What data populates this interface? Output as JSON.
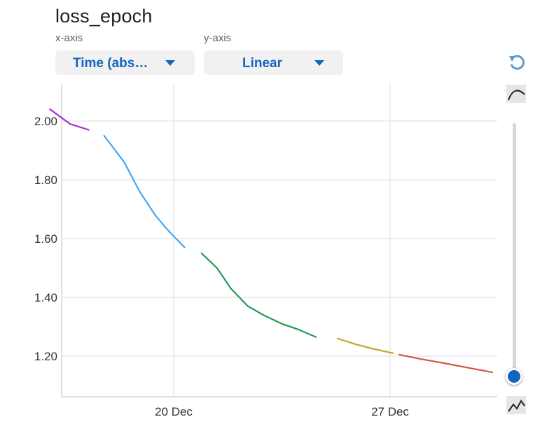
{
  "header": {
    "title": "loss_epoch",
    "xaxis_label": "x-axis",
    "yaxis_label": "y-axis",
    "xaxis_value": "Time (abs…",
    "yaxis_value": "Linear"
  },
  "icons": {
    "reset": "reset-zoom-icon",
    "smooth_curve": "smoothing-curve-icon",
    "raw_line": "raw-line-icon"
  },
  "colors": {
    "accent": "#1565c0",
    "grid": "#dddddd",
    "slider_knob": "#1565c0"
  },
  "smoothing_slider": {
    "value": 0.0
  },
  "chart_data": {
    "type": "line",
    "title": "loss_epoch",
    "xlabel": "",
    "ylabel": "",
    "x_ticks": [
      "20 Dec",
      "27 Dec"
    ],
    "y_ticks": [
      "1.20",
      "1.40",
      "1.60",
      "1.80",
      "2.00"
    ],
    "ylim": [
      1.07,
      2.13
    ],
    "xlim_days": [
      "2021-12-15T16:00",
      "2021-12-29T12:00"
    ],
    "series": [
      {
        "color": "#aa33cc",
        "points": [
          [
            16.0,
            2.04
          ],
          [
            16.65,
            1.99
          ],
          [
            17.25,
            1.97
          ]
        ]
      },
      {
        "color": "#42a5f5",
        "points": [
          [
            17.75,
            1.95
          ],
          [
            18.4,
            1.86
          ],
          [
            18.9,
            1.76
          ],
          [
            19.4,
            1.68
          ],
          [
            19.8,
            1.63
          ],
          [
            20.35,
            1.57
          ]
        ]
      },
      {
        "color": "#229955",
        "points": [
          [
            20.9,
            1.55
          ],
          [
            21.4,
            1.5
          ],
          [
            21.85,
            1.43
          ],
          [
            22.4,
            1.37
          ],
          [
            22.9,
            1.34
          ],
          [
            23.5,
            1.31
          ],
          [
            24.05,
            1.29
          ],
          [
            24.6,
            1.265
          ]
        ]
      },
      {
        "color": "#c8a62a",
        "points": [
          [
            25.3,
            1.26
          ],
          [
            25.9,
            1.24
          ],
          [
            26.45,
            1.225
          ],
          [
            27.1,
            1.21
          ]
        ]
      },
      {
        "color": "#d0583f",
        "points": [
          [
            27.3,
            1.205
          ],
          [
            28.0,
            1.19
          ],
          [
            28.8,
            1.175
          ],
          [
            29.55,
            1.16
          ],
          [
            30.3,
            1.145
          ]
        ]
      }
    ]
  }
}
